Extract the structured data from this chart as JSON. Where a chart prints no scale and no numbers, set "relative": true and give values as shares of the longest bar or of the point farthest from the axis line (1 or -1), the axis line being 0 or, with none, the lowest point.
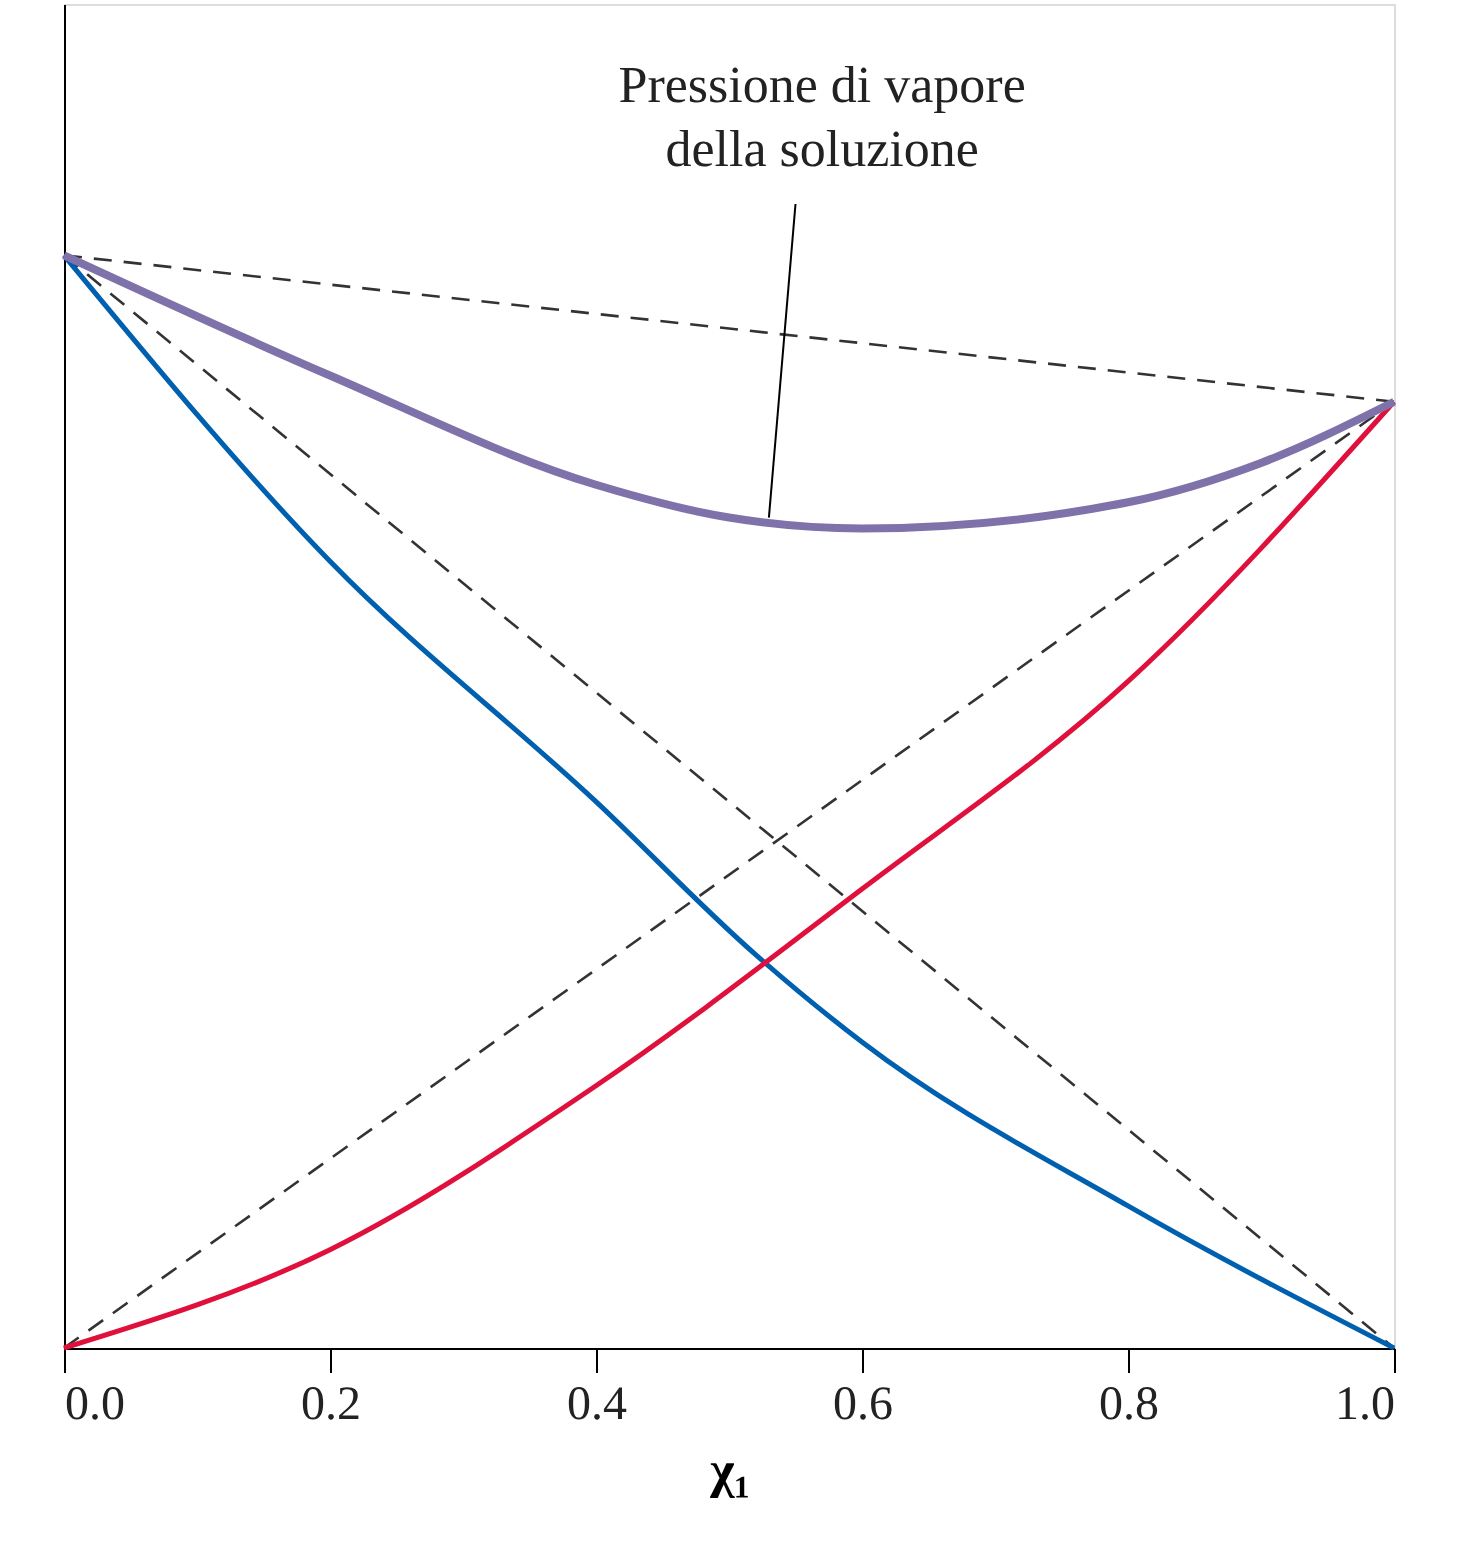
{
  "chart_data": {
    "type": "line",
    "xlabel": "χ₁",
    "relative": true,
    "grid": false,
    "marker": "none",
    "xlim": [
      0,
      1
    ],
    "xticks": [
      {
        "value": 0,
        "label": "0.0"
      },
      {
        "value": 0.2,
        "label": "0.2"
      },
      {
        "value": 0.4,
        "label": "0.4"
      },
      {
        "value": 0.6,
        "label": "0.6"
      },
      {
        "value": 0.8,
        "label": "0.8"
      },
      {
        "value": 1,
        "label": "1.0"
      }
    ],
    "tick_labels": "x",
    "series": [
      {
        "color": "#333333",
        "line_style": "dashed",
        "x": [
          0,
          1
        ],
        "values": [
          1,
          0.866
        ]
      },
      {
        "color": "#333333",
        "line_style": "dashed",
        "x": [
          0,
          1
        ],
        "values": [
          1,
          0
        ]
      },
      {
        "color": "#333333",
        "line_style": "dashed",
        "x": [
          0,
          1
        ],
        "values": [
          0,
          0.866
        ]
      },
      {
        "color": "#0060b0",
        "line_style": "solid",
        "x": [
          0,
          0.2,
          0.4,
          0.52,
          0.6,
          0.8,
          1
        ],
        "values": [
          1,
          0.72,
          0.5,
          0.36,
          0.28,
          0.13,
          0
        ]
      },
      {
        "color": "#e0103c",
        "line_style": "solid",
        "x": [
          0,
          0.2,
          0.4,
          0.6,
          0.8,
          1
        ],
        "values": [
          0,
          0.09,
          0.24,
          0.42,
          0.61,
          0.866
        ]
      },
      {
        "color": "#7f72aa",
        "line_style": "solid",
        "x": [
          0,
          0.2,
          0.4,
          0.5,
          0.6,
          0.8,
          0.9,
          1
        ],
        "values": [
          1,
          0.89,
          0.79,
          0.76,
          0.75,
          0.774,
          0.81,
          0.866
        ]
      }
    ],
    "annotations": [
      {
        "text": "Pressione di vapore\ndella soluzione",
        "x": 0.53,
        "y": 0.76
      }
    ]
  }
}
